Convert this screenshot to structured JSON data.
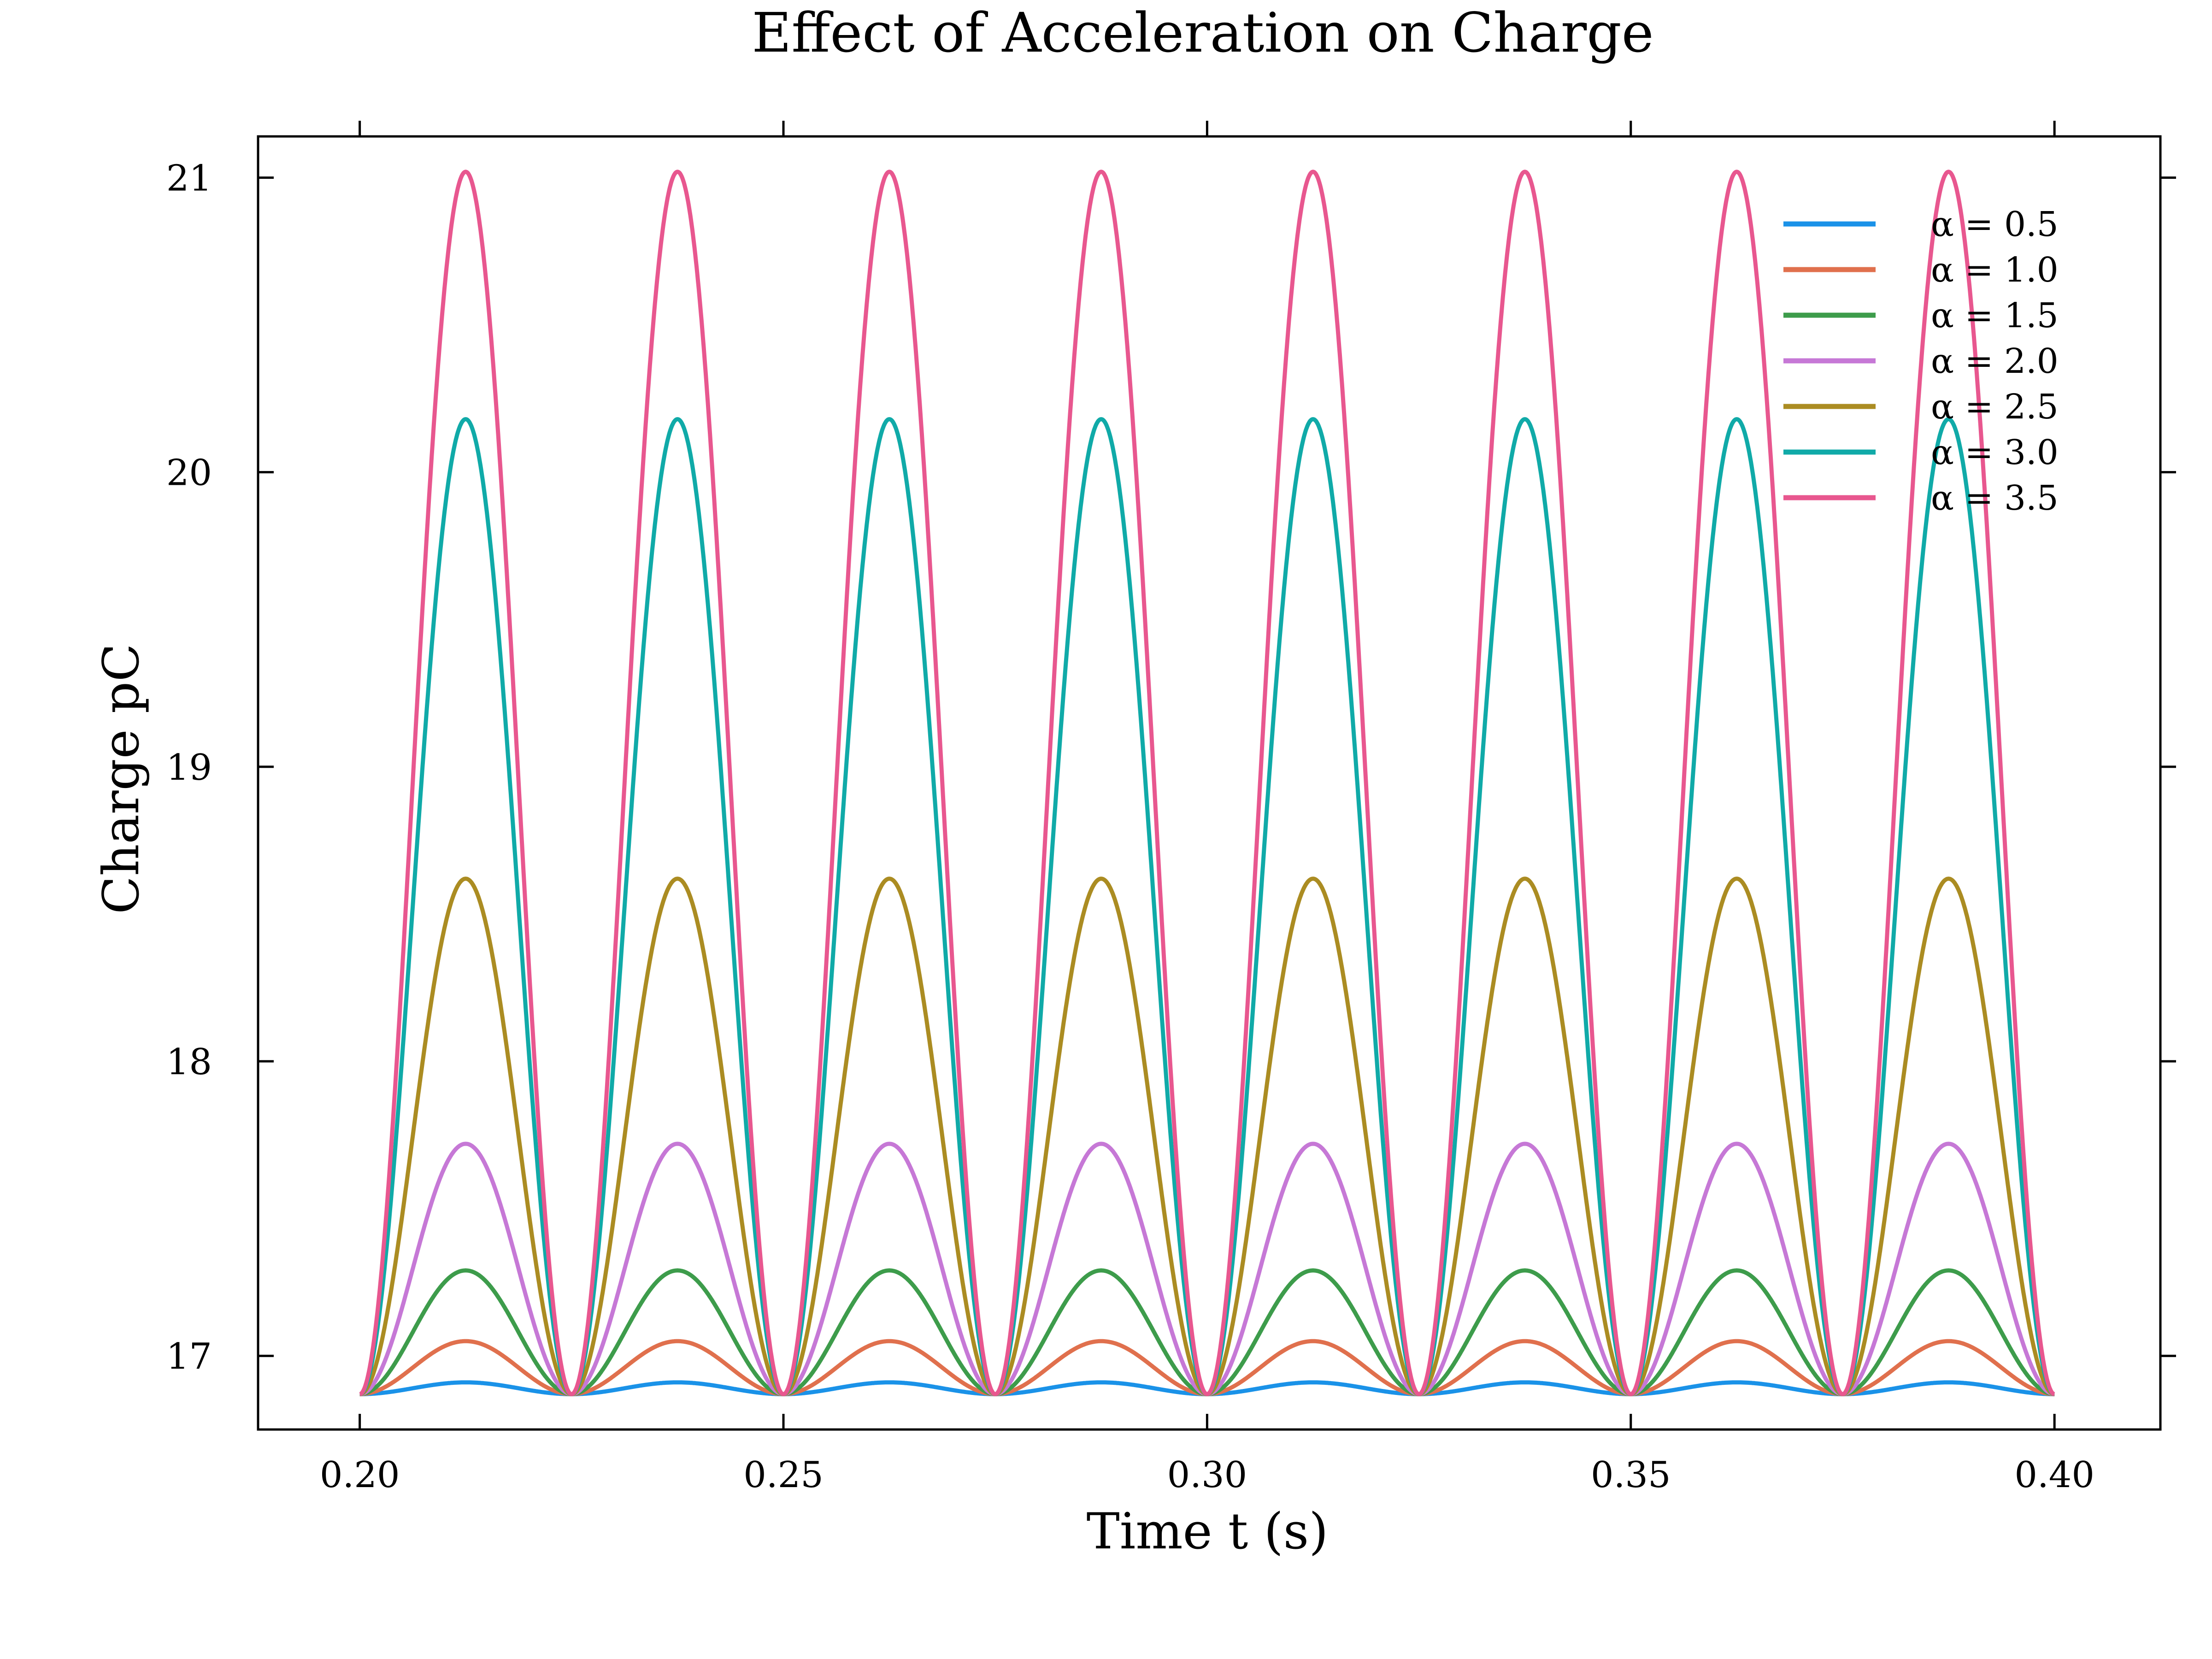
{
  "chart_data": {
    "type": "line",
    "title": "Effect of Acceleration on Charge",
    "xlabel": "Time t (s)",
    "ylabel": "Charge pC",
    "xlim": [
      0.188,
      0.4125
    ],
    "ylim": [
      16.75,
      21.14
    ],
    "xticks": [
      0.2,
      0.25,
      0.3,
      0.35,
      0.4
    ],
    "xtick_labels": [
      "0.20",
      "0.25",
      "0.30",
      "0.35",
      "0.40"
    ],
    "yticks": [
      17,
      18,
      19,
      20,
      21
    ],
    "ytick_labels": [
      "17",
      "18",
      "19",
      "20",
      "21"
    ],
    "grid": false,
    "legend_position": "top-right",
    "period": 0.025,
    "x_start": 0.2,
    "x_end": 0.4,
    "baseline": 16.87,
    "series": [
      {
        "name": "α = 0.5",
        "peak": 16.91,
        "color": "#1a92e8"
      },
      {
        "name": "α = 1.0",
        "peak": 17.05,
        "color": "#e0704d"
      },
      {
        "name": "α = 1.5",
        "peak": 17.29,
        "color": "#3d9c4b"
      },
      {
        "name": "α = 2.0",
        "peak": 17.72,
        "color": "#c678d6"
      },
      {
        "name": "α = 2.5",
        "peak": 18.62,
        "color": "#ab8c22"
      },
      {
        "name": "α = 3.0",
        "peak": 20.18,
        "color": "#10aaa8"
      },
      {
        "name": "α = 3.5",
        "peak": 21.02,
        "color": "#e8578f"
      }
    ]
  }
}
